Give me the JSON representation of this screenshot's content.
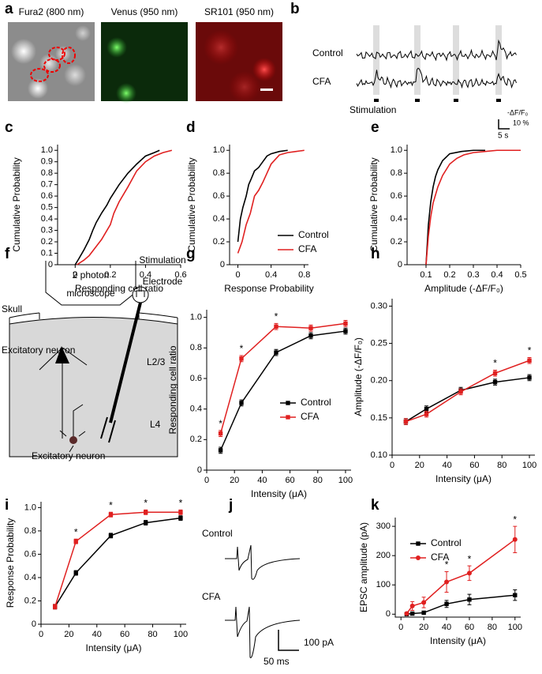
{
  "panel_labels": [
    "a",
    "b",
    "c",
    "d",
    "e",
    "f",
    "g",
    "h",
    "i",
    "j",
    "k"
  ],
  "images": {
    "titles": [
      "Fura2 (800 nm)",
      "Venus (950 nm)",
      "SR101 (950 nm)"
    ]
  },
  "traces": {
    "rows": [
      "Control",
      "CFA"
    ],
    "stimulation": "Stimulation",
    "scale_y_unit": "-ΔF/F₀",
    "scale_y": "10 %",
    "scale_x": "5 s"
  },
  "diagram": {
    "labels": [
      "2 photon",
      "microscope",
      "Stimulation",
      "Electrode",
      "Skull",
      "Excitatory neuron",
      "L2/3",
      "L4",
      "Excitatory neuron"
    ]
  },
  "epsc_traces": {
    "rows": [
      "Control",
      "CFA"
    ],
    "scale_y": "100 pA",
    "scale_x": "50 ms"
  },
  "chart_data": [
    {
      "type": "line",
      "xlabel": "Responding cell ratio",
      "ylabel": "Cumulative Probability",
      "xlim": [
        -0.1,
        0.6
      ],
      "xticks": [
        0,
        0.2,
        0.4,
        0.6
      ],
      "ylim": [
        0,
        1.05
      ],
      "yticks": [
        0,
        0.1,
        0.2,
        0.3,
        0.4,
        0.5,
        0.6,
        0.7,
        0.8,
        0.9,
        {
          "value": 1,
          "label": "1.0"
        }
      ],
      "series": [
        {
          "color": "#000000",
          "x": [
            0,
            0.02,
            0.05,
            0.08,
            0.1,
            0.12,
            0.15,
            0.18,
            0.2,
            0.25,
            0.3,
            0.35,
            0.4,
            0.45,
            0.48
          ],
          "values": [
            0,
            0.05,
            0.13,
            0.22,
            0.3,
            0.37,
            0.45,
            0.52,
            0.58,
            0.7,
            0.8,
            0.88,
            0.95,
            0.98,
            1
          ]
        },
        {
          "color": "#e02020",
          "x": [
            0.01,
            0.05,
            0.08,
            0.1,
            0.15,
            0.2,
            0.22,
            0.25,
            0.3,
            0.35,
            0.4,
            0.45,
            0.5,
            0.55
          ],
          "values": [
            0,
            0.04,
            0.08,
            0.12,
            0.22,
            0.35,
            0.45,
            0.55,
            0.68,
            0.82,
            0.9,
            0.95,
            0.98,
            1
          ]
        }
      ]
    },
    {
      "type": "line",
      "xlabel": "Response Probability",
      "ylabel": "Cumulative Probability",
      "legend": "lower right",
      "xlim": [
        -0.1,
        0.85
      ],
      "xticks": [
        0,
        0.4,
        0.8
      ],
      "ylim": [
        0,
        1.05
      ],
      "yticks": [
        0,
        0.2,
        0.4,
        0.6,
        0.8,
        {
          "value": 1,
          "label": "1.0"
        }
      ],
      "series": [
        {
          "name": "Control",
          "color": "#000000",
          "x": [
            0,
            0.03,
            0.06,
            0.1,
            0.13,
            0.16,
            0.2,
            0.25,
            0.3,
            0.35,
            0.4,
            0.5,
            0.6
          ],
          "values": [
            0.2,
            0.4,
            0.5,
            0.6,
            0.7,
            0.75,
            0.82,
            0.85,
            0.9,
            0.95,
            0.97,
            0.99,
            1
          ]
        },
        {
          "name": "CFA",
          "color": "#e02020",
          "x": [
            0,
            0.05,
            0.1,
            0.15,
            0.2,
            0.25,
            0.3,
            0.35,
            0.4,
            0.45,
            0.5,
            0.6,
            0.7,
            0.8
          ],
          "values": [
            0.1,
            0.2,
            0.35,
            0.45,
            0.6,
            0.65,
            0.72,
            0.8,
            0.88,
            0.92,
            0.96,
            0.98,
            0.99,
            1
          ]
        }
      ]
    },
    {
      "type": "line",
      "xlabel": "Amplitude (-ΔF/F₀)",
      "ylabel": "Cumulative Probability",
      "xlim": [
        0.02,
        0.5
      ],
      "xticks": [
        0.1,
        0.2,
        0.3,
        0.4,
        0.5
      ],
      "ylim": [
        0,
        1.05
      ],
      "yticks": [
        0,
        0.2,
        0.4,
        0.6,
        0.8,
        {
          "value": 1,
          "label": "1.0"
        }
      ],
      "series": [
        {
          "color": "#000000",
          "x": [
            0.1,
            0.11,
            0.12,
            0.13,
            0.14,
            0.15,
            0.17,
            0.2,
            0.25,
            0.3,
            0.35
          ],
          "values": [
            0,
            0.35,
            0.55,
            0.68,
            0.77,
            0.83,
            0.91,
            0.97,
            0.99,
            1,
            1
          ]
        },
        {
          "color": "#e02020",
          "x": [
            0.1,
            0.11,
            0.12,
            0.13,
            0.15,
            0.17,
            0.2,
            0.23,
            0.26,
            0.3,
            0.35,
            0.4,
            0.5
          ],
          "values": [
            0,
            0.25,
            0.42,
            0.54,
            0.68,
            0.78,
            0.88,
            0.93,
            0.96,
            0.98,
            0.99,
            1,
            1
          ]
        }
      ]
    },
    {
      "type": "line",
      "xlabel": "Intensity (μA)",
      "ylabel": "Responding cell ratio",
      "legend": "lower right",
      "xlim": [
        0,
        104
      ],
      "xticks": [
        0,
        20,
        40,
        60,
        80,
        100
      ],
      "ylim": [
        0,
        1.05
      ],
      "yticks": [
        0,
        0.2,
        0.4,
        0.6,
        0.8,
        {
          "value": 1,
          "label": "1.0"
        }
      ],
      "x": [
        10,
        25,
        50,
        75,
        100
      ],
      "series": [
        {
          "name": "Control",
          "color": "#000000",
          "marker": "square",
          "values": [
            0.13,
            0.44,
            0.77,
            0.88,
            0.91
          ],
          "errors": [
            0.02,
            0.02,
            0.02,
            0.02,
            0.02
          ]
        },
        {
          "name": "CFA",
          "color": "#e02020",
          "marker": "square",
          "values": [
            0.24,
            0.73,
            0.94,
            0.93,
            0.96
          ],
          "errors": [
            0.02,
            0.02,
            0.02,
            0.02,
            0.02
          ]
        }
      ],
      "annotations": [
        {
          "text": "*",
          "x": 10
        },
        {
          "text": "*",
          "x": 25
        },
        {
          "text": "*",
          "x": 50
        }
      ]
    },
    {
      "type": "line",
      "xlabel": "Intensity (μA)",
      "ylabel": "Amplitude (-ΔF/F₀)",
      "xlim": [
        0,
        104
      ],
      "xticks": [
        0,
        20,
        40,
        60,
        80,
        100
      ],
      "ylim": [
        0.1,
        0.31
      ],
      "yticks": [
        {
          "value": 0.1,
          "label": "0.10"
        },
        0.15,
        {
          "value": 0.2,
          "label": "0.20"
        },
        0.25,
        {
          "value": 0.3,
          "label": "0.30"
        }
      ],
      "x": [
        10,
        25,
        50,
        75,
        100
      ],
      "series": [
        {
          "color": "#000000",
          "marker": "square",
          "values": [
            0.145,
            0.162,
            0.187,
            0.198,
            0.204
          ],
          "errors": [
            0.004,
            0.004,
            0.004,
            0.004,
            0.004
          ]
        },
        {
          "color": "#e02020",
          "marker": "square",
          "values": [
            0.145,
            0.155,
            0.185,
            0.21,
            0.227
          ],
          "errors": [
            0.004,
            0.004,
            0.004,
            0.004,
            0.004
          ]
        }
      ],
      "annotations": [
        {
          "text": "*",
          "x": 75
        },
        {
          "text": "*",
          "x": 100
        }
      ]
    },
    {
      "type": "line",
      "xlabel": "Intensity (μA)",
      "ylabel": "Response Probability",
      "xlim": [
        0,
        104
      ],
      "xticks": [
        0,
        20,
        40,
        60,
        80,
        100
      ],
      "ylim": [
        0,
        1.05
      ],
      "yticks": [
        0,
        0.2,
        0.4,
        0.6,
        0.8,
        {
          "value": 1,
          "label": "1.0"
        }
      ],
      "x": [
        10,
        25,
        50,
        75,
        100
      ],
      "series": [
        {
          "color": "#000000",
          "marker": "square",
          "values": [
            0.15,
            0.44,
            0.76,
            0.87,
            0.91
          ],
          "errors": [
            0.02,
            0.02,
            0.02,
            0.02,
            0.02
          ]
        },
        {
          "color": "#e02020",
          "marker": "square",
          "values": [
            0.15,
            0.71,
            0.94,
            0.96,
            0.96
          ],
          "errors": [
            0.02,
            0.02,
            0.02,
            0.02,
            0.02
          ]
        }
      ],
      "annotations": [
        {
          "text": "*",
          "x": 25
        },
        {
          "text": "*",
          "x": 50
        },
        {
          "text": "*",
          "x": 75
        },
        {
          "text": "*",
          "x": 100
        }
      ]
    },
    {
      "type": "line",
      "xlabel": "Intensity (μA)",
      "ylabel": "EPSC amplitude (pA)",
      "legend": "upper left",
      "xlim": [
        -5,
        105
      ],
      "xticks": [
        0,
        20,
        40,
        60,
        80,
        100
      ],
      "ylim": [
        -10,
        330
      ],
      "yticks": [
        0,
        100,
        200,
        300
      ],
      "series": [
        {
          "name": "Control",
          "color": "#000000",
          "marker": "square",
          "x": [
            5,
            10,
            20,
            40,
            60,
            100
          ],
          "values": [
            0,
            2,
            5,
            35,
            50,
            65
          ],
          "errors": [
            2,
            3,
            5,
            12,
            18,
            18
          ]
        },
        {
          "name": "CFA",
          "color": "#e02020",
          "marker": "circle",
          "x": [
            5,
            10,
            20,
            40,
            60,
            100
          ],
          "values": [
            2,
            28,
            40,
            110,
            140,
            255
          ],
          "errors": [
            3,
            15,
            18,
            35,
            25,
            45
          ]
        }
      ],
      "annotations": [
        {
          "text": "*",
          "x": 40
        },
        {
          "text": "*",
          "x": 60
        },
        {
          "text": "*",
          "x": 100
        }
      ]
    }
  ]
}
